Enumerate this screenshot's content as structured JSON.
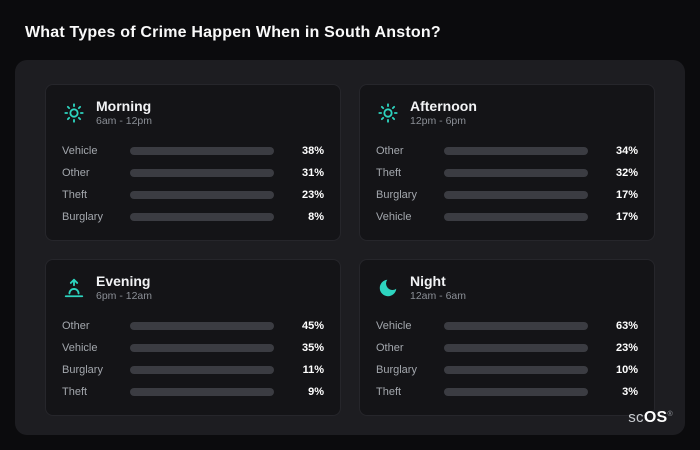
{
  "title": "What Types of Crime Happen When in South Anston?",
  "logo": {
    "part1": "sc",
    "part2": "OS",
    "reg": "®"
  },
  "colors": {
    "vehicle": "#3f82f6",
    "other": "#64748b",
    "theft": "#a855f7",
    "burglary": "#f97316",
    "accent_teal": "#2dd4bf",
    "bar_track": "#3b3c42",
    "panel_bg": "#1d1d21",
    "card_bg": "#141417",
    "page_bg": "#0b0b0d"
  },
  "cards": [
    {
      "title": "Morning",
      "subtitle": "6am - 12pm",
      "icon": "sun-icon",
      "rows": [
        {
          "label": "Vehicle",
          "value": 38,
          "pct": "38%",
          "color": "#3f82f6"
        },
        {
          "label": "Other",
          "value": 31,
          "pct": "31%",
          "color": "#64748b"
        },
        {
          "label": "Theft",
          "value": 23,
          "pct": "23%",
          "color": "#a855f7"
        },
        {
          "label": "Burglary",
          "value": 8,
          "pct": "8%",
          "color": "#f97316"
        }
      ]
    },
    {
      "title": "Afternoon",
      "subtitle": "12pm - 6pm",
      "icon": "sun-icon",
      "rows": [
        {
          "label": "Other",
          "value": 34,
          "pct": "34%",
          "color": "#64748b"
        },
        {
          "label": "Theft",
          "value": 32,
          "pct": "32%",
          "color": "#a855f7"
        },
        {
          "label": "Burglary",
          "value": 17,
          "pct": "17%",
          "color": "#f97316"
        },
        {
          "label": "Vehicle",
          "value": 17,
          "pct": "17%",
          "color": "#3f82f6"
        }
      ]
    },
    {
      "title": "Evening",
      "subtitle": "6pm - 12am",
      "icon": "sunset-icon",
      "rows": [
        {
          "label": "Other",
          "value": 45,
          "pct": "45%",
          "color": "#64748b"
        },
        {
          "label": "Vehicle",
          "value": 35,
          "pct": "35%",
          "color": "#3f82f6"
        },
        {
          "label": "Burglary",
          "value": 11,
          "pct": "11%",
          "color": "#f97316"
        },
        {
          "label": "Theft",
          "value": 9,
          "pct": "9%",
          "color": "#a855f7"
        }
      ]
    },
    {
      "title": "Night",
      "subtitle": "12am - 6am",
      "icon": "moon-icon",
      "rows": [
        {
          "label": "Vehicle",
          "value": 63,
          "pct": "63%",
          "color": "#3f82f6"
        },
        {
          "label": "Other",
          "value": 23,
          "pct": "23%",
          "color": "#64748b"
        },
        {
          "label": "Burglary",
          "value": 10,
          "pct": "10%",
          "color": "#f97316"
        },
        {
          "label": "Theft",
          "value": 3,
          "pct": "3%",
          "color": "#a855f7"
        }
      ]
    }
  ],
  "chart_data": [
    {
      "type": "bar",
      "orientation": "horizontal",
      "title": "Morning",
      "subtitle": "6am - 12pm",
      "categories": [
        "Vehicle",
        "Other",
        "Theft",
        "Burglary"
      ],
      "values": [
        38,
        31,
        23,
        8
      ],
      "unit": "%",
      "xlim": [
        0,
        86
      ],
      "grid": false,
      "legend": false
    },
    {
      "type": "bar",
      "orientation": "horizontal",
      "title": "Afternoon",
      "subtitle": "12pm - 6pm",
      "categories": [
        "Other",
        "Theft",
        "Burglary",
        "Vehicle"
      ],
      "values": [
        34,
        32,
        17,
        17
      ],
      "unit": "%",
      "xlim": [
        0,
        86
      ],
      "grid": false,
      "legend": false
    },
    {
      "type": "bar",
      "orientation": "horizontal",
      "title": "Evening",
      "subtitle": "6pm - 12am",
      "categories": [
        "Other",
        "Vehicle",
        "Burglary",
        "Theft"
      ],
      "values": [
        45,
        35,
        11,
        9
      ],
      "unit": "%",
      "xlim": [
        0,
        86
      ],
      "grid": false,
      "legend": false
    },
    {
      "type": "bar",
      "orientation": "horizontal",
      "title": "Night",
      "subtitle": "12am - 6am",
      "categories": [
        "Vehicle",
        "Other",
        "Burglary",
        "Theft"
      ],
      "values": [
        63,
        23,
        10,
        3
      ],
      "unit": "%",
      "xlim": [
        0,
        86
      ],
      "grid": false,
      "legend": false
    }
  ]
}
